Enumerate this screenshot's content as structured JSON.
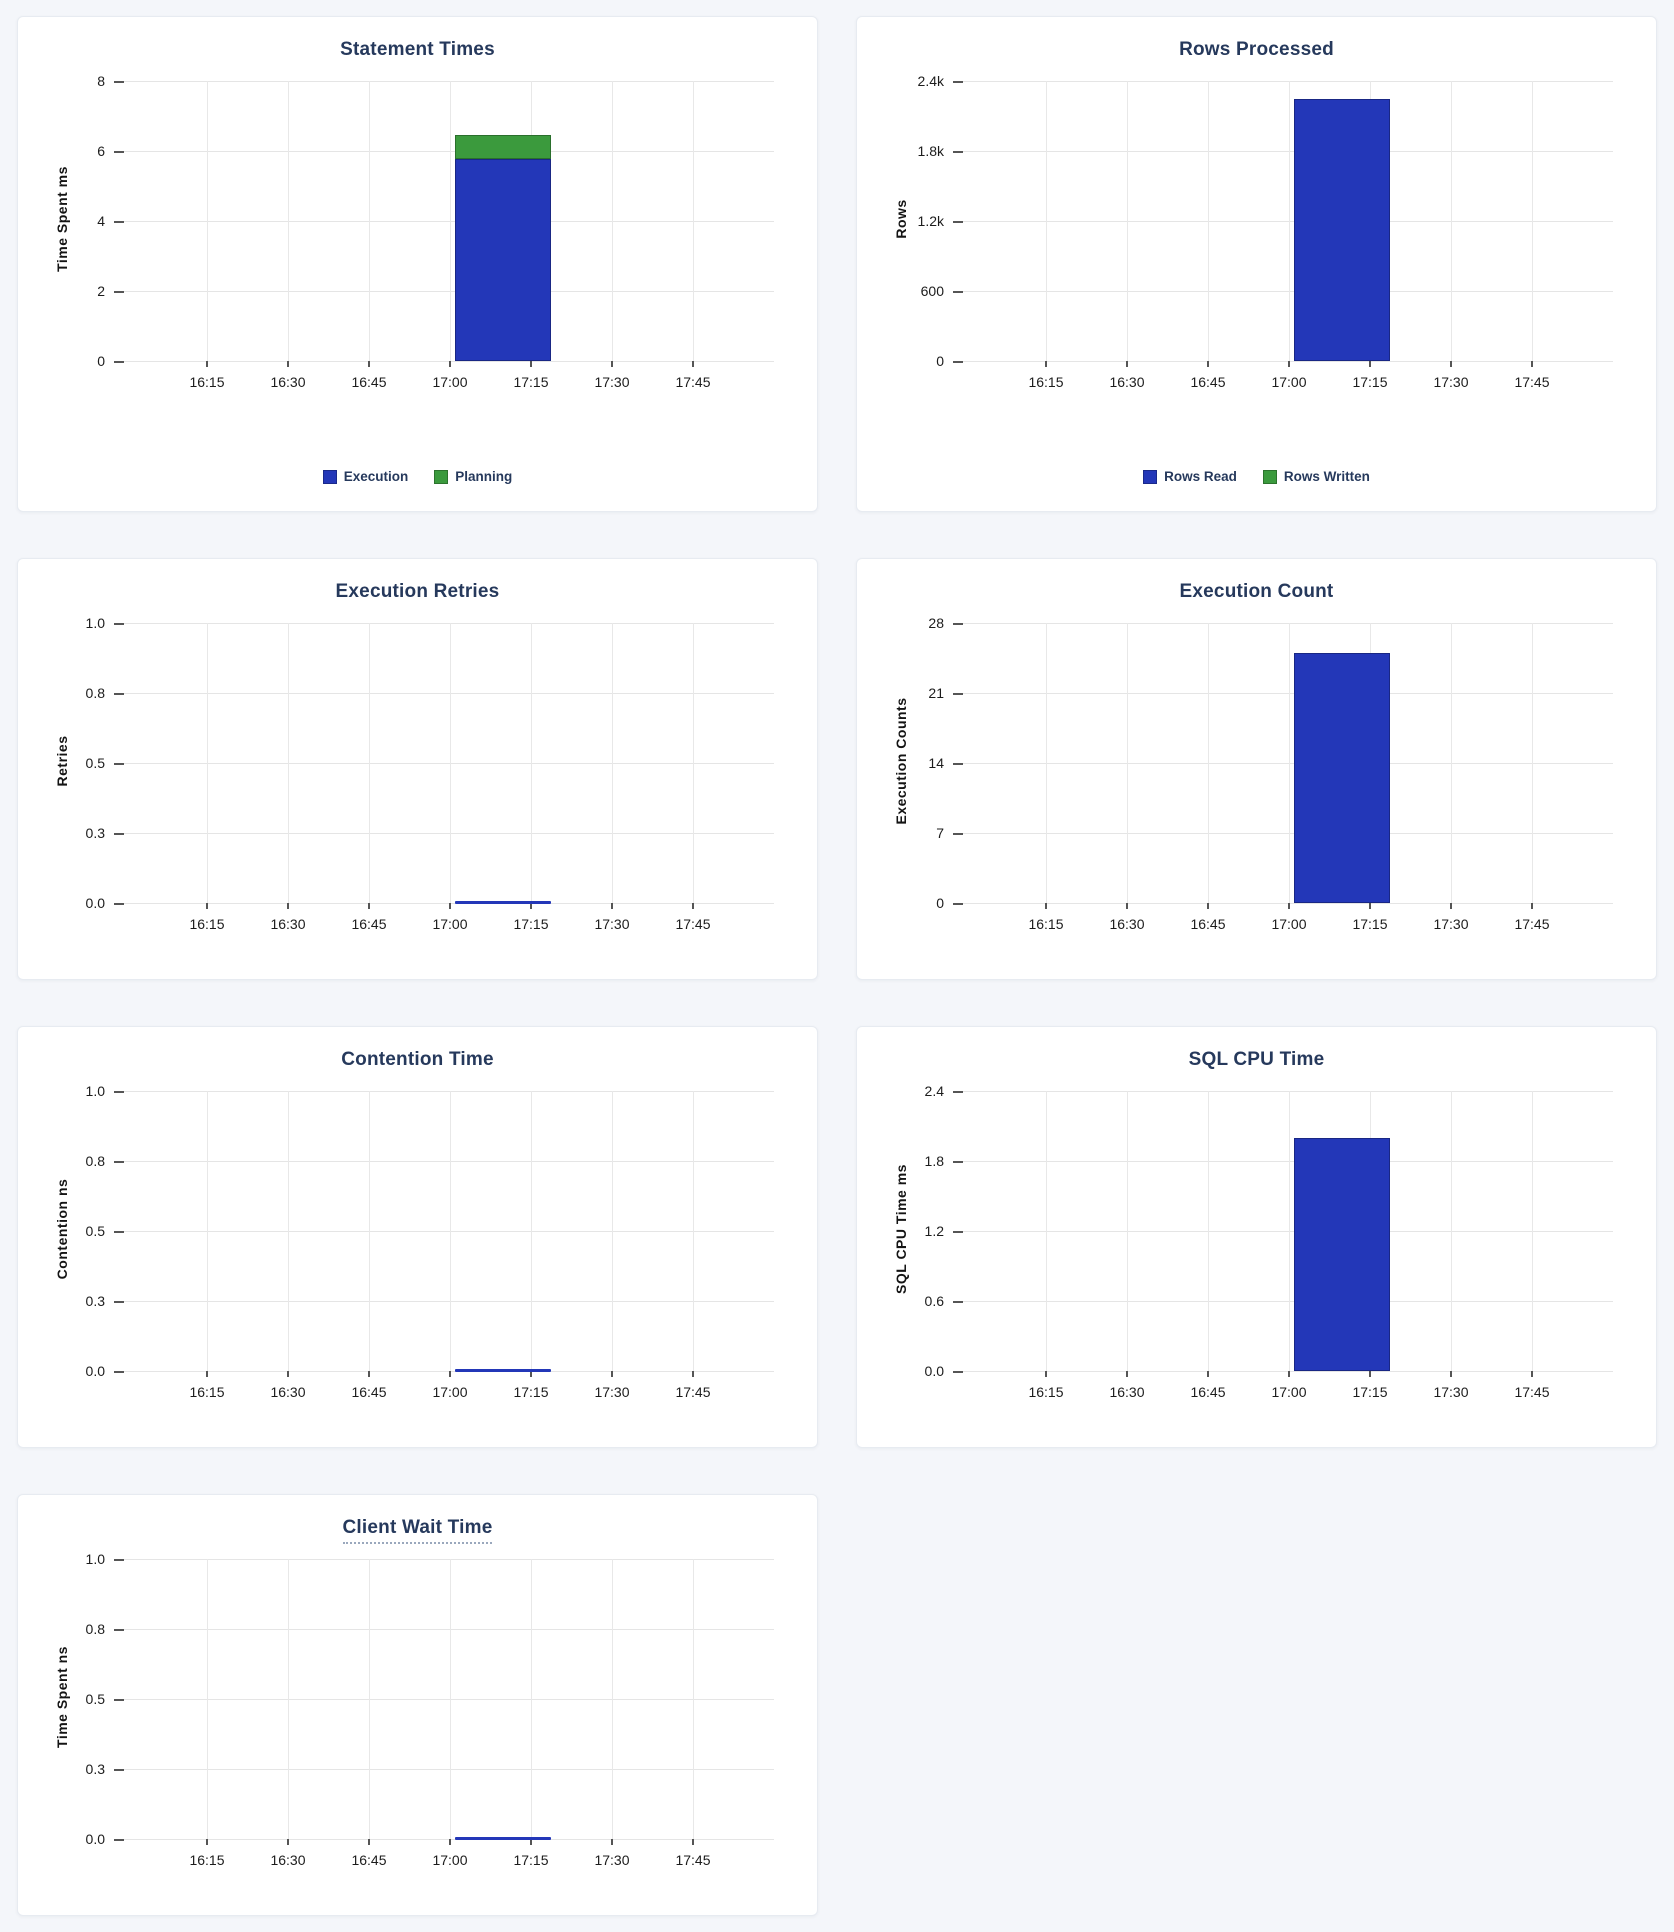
{
  "page": {
    "background": "#f4f6fa",
    "card_background": "#ffffff"
  },
  "colors": {
    "bar_blue": "#2337b8",
    "bar_green": "#3b9a3d",
    "title_navy": "#26395c",
    "axis_text": "#1c1c1c",
    "gridline": "#e5e5e5"
  },
  "chart_data": [
    {
      "type": "bar",
      "title": "Statement Times",
      "title_underlined": false,
      "ylabel": "Time Spent ms",
      "y_ticks": [
        "8",
        "6",
        "4",
        "2",
        "0"
      ],
      "y_max": 8,
      "x_ticks": [
        "16:15",
        "16:30",
        "16:45",
        "17:00",
        "17:15",
        "17:30",
        "17:45"
      ],
      "bar_x_start": "17:00",
      "bar_x_end": "17:17",
      "series": [
        {
          "name": "Execution",
          "value": 5.78,
          "color": "#2337b8"
        },
        {
          "name": "Planning",
          "value": 0.67,
          "color": "#3b9a3d"
        }
      ],
      "legend": [
        {
          "label": "Execution",
          "color": "#2337b8"
        },
        {
          "label": "Planning",
          "color": "#3b9a3d"
        }
      ]
    },
    {
      "type": "bar",
      "title": "Rows Processed",
      "title_underlined": false,
      "ylabel": "Rows",
      "y_ticks": [
        "2.4k",
        "1.8k",
        "1.2k",
        "600",
        "0"
      ],
      "y_max": 2400,
      "x_ticks": [
        "16:15",
        "16:30",
        "16:45",
        "17:00",
        "17:15",
        "17:30",
        "17:45"
      ],
      "bar_x_start": "17:00",
      "bar_x_end": "17:17",
      "series": [
        {
          "name": "Rows Read",
          "value": 2250,
          "color": "#2337b8"
        },
        {
          "name": "Rows Written",
          "value": 0,
          "color": "#3b9a3d"
        }
      ],
      "legend": [
        {
          "label": "Rows Read",
          "color": "#2337b8"
        },
        {
          "label": "Rows Written",
          "color": "#3b9a3d"
        }
      ]
    },
    {
      "type": "bar",
      "title": "Execution Retries",
      "title_underlined": false,
      "ylabel": "Retries",
      "y_ticks": [
        "1.0",
        "0.8",
        "0.5",
        "0.3",
        "0.0"
      ],
      "y_max": 1,
      "x_ticks": [
        "16:15",
        "16:30",
        "16:45",
        "17:00",
        "17:15",
        "17:30",
        "17:45"
      ],
      "bar_x_start": "17:00",
      "bar_x_end": "17:17",
      "series": [
        {
          "name": "Retries",
          "value": 0,
          "color": "#2337b8"
        }
      ],
      "legend": null
    },
    {
      "type": "bar",
      "title": "Execution Count",
      "title_underlined": false,
      "ylabel": "Execution Counts",
      "y_ticks": [
        "28",
        "21",
        "14",
        "7",
        "0"
      ],
      "y_max": 28,
      "x_ticks": [
        "16:15",
        "16:30",
        "16:45",
        "17:00",
        "17:15",
        "17:30",
        "17:45"
      ],
      "bar_x_start": "17:00",
      "bar_x_end": "17:17",
      "series": [
        {
          "name": "Execution Count",
          "value": 25,
          "color": "#2337b8"
        }
      ],
      "legend": null
    },
    {
      "type": "bar",
      "title": "Contention Time",
      "title_underlined": false,
      "ylabel": "Contention ns",
      "y_ticks": [
        "1.0",
        "0.8",
        "0.5",
        "0.3",
        "0.0"
      ],
      "y_max": 1,
      "x_ticks": [
        "16:15",
        "16:30",
        "16:45",
        "17:00",
        "17:15",
        "17:30",
        "17:45"
      ],
      "bar_x_start": "17:00",
      "bar_x_end": "17:17",
      "series": [
        {
          "name": "Contention",
          "value": 0,
          "color": "#2337b8"
        }
      ],
      "legend": null
    },
    {
      "type": "bar",
      "title": "SQL CPU Time",
      "title_underlined": false,
      "ylabel": "SQL CPU Time ms",
      "y_ticks": [
        "2.4",
        "1.8",
        "1.2",
        "0.6",
        "0.0"
      ],
      "y_max": 2.4,
      "x_ticks": [
        "16:15",
        "16:30",
        "16:45",
        "17:00",
        "17:15",
        "17:30",
        "17:45"
      ],
      "bar_x_start": "17:00",
      "bar_x_end": "17:17",
      "series": [
        {
          "name": "SQL CPU Time",
          "value": 2.0,
          "color": "#2337b8"
        }
      ],
      "legend": null
    },
    {
      "type": "bar",
      "title": "Client Wait Time",
      "title_underlined": true,
      "ylabel": "Time Spent ns",
      "y_ticks": [
        "1.0",
        "0.8",
        "0.5",
        "0.3",
        "0.0"
      ],
      "y_max": 1,
      "x_ticks": [
        "16:15",
        "16:30",
        "16:45",
        "17:00",
        "17:15",
        "17:30",
        "17:45"
      ],
      "bar_x_start": "17:00",
      "bar_x_end": "17:17",
      "series": [
        {
          "name": "Client Wait",
          "value": 0,
          "color": "#2337b8"
        }
      ],
      "legend": null
    }
  ]
}
